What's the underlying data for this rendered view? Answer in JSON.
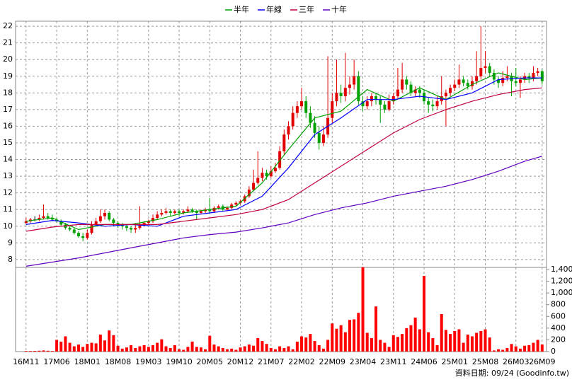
{
  "chart_data": {
    "type": "candlestick",
    "source": "資料日期: 09/24 (Goodinfo.tw)",
    "up_color": "#e00000",
    "down_color": "#00a000",
    "volume_color": "#ff0000",
    "grid": true,
    "categories": [
      "16M11",
      null,
      null,
      null,
      null,
      null,
      null,
      "17M06",
      null,
      null,
      null,
      null,
      null,
      null,
      "18M01",
      null,
      null,
      null,
      null,
      null,
      null,
      "18M08",
      null,
      null,
      null,
      null,
      null,
      null,
      "19M03",
      null,
      null,
      null,
      null,
      null,
      null,
      "19M10",
      null,
      null,
      null,
      null,
      null,
      null,
      "20M05",
      null,
      null,
      null,
      null,
      null,
      null,
      "20M12",
      null,
      null,
      null,
      null,
      null,
      null,
      "21M07",
      null,
      null,
      null,
      null,
      null,
      null,
      "22M02",
      null,
      null,
      null,
      null,
      null,
      null,
      "22M09",
      null,
      null,
      null,
      null,
      null,
      null,
      "23M04",
      null,
      null,
      null,
      null,
      null,
      null,
      "23M11",
      null,
      null,
      null,
      null,
      null,
      null,
      "24M06",
      null,
      null,
      null,
      null,
      null,
      null,
      "25M01",
      null,
      null,
      null,
      null,
      null,
      null,
      "25M08",
      null,
      null,
      null,
      null,
      null,
      null,
      "26M03",
      null,
      null,
      null,
      null,
      null,
      "26M09"
    ],
    "candles": [
      [
        10.2,
        10.5,
        10.1,
        10.3
      ],
      [
        10.3,
        10.5,
        10.2,
        10.4
      ],
      [
        10.4,
        10.6,
        10.3,
        10.4
      ],
      [
        10.4,
        10.7,
        10.3,
        10.5
      ],
      [
        10.5,
        11.3,
        10.4,
        10.6
      ],
      [
        10.6,
        10.8,
        10.4,
        10.5
      ],
      [
        10.5,
        10.7,
        10.3,
        10.4
      ],
      [
        10.4,
        10.5,
        10.2,
        10.3
      ],
      [
        10.3,
        10.4,
        10.0,
        10.1
      ],
      [
        10.1,
        10.2,
        9.8,
        9.9
      ],
      [
        9.9,
        10.0,
        9.7,
        9.8
      ],
      [
        9.8,
        9.9,
        9.5,
        9.6
      ],
      [
        9.6,
        9.7,
        9.3,
        9.4
      ],
      [
        9.4,
        9.6,
        9.1,
        9.3
      ],
      [
        9.3,
        9.8,
        9.2,
        9.6
      ],
      [
        9.6,
        10.3,
        9.5,
        10.1
      ],
      [
        10.1,
        10.5,
        10.0,
        10.3
      ],
      [
        10.3,
        11.0,
        10.2,
        10.6
      ],
      [
        10.6,
        11.0,
        10.4,
        10.8
      ],
      [
        10.8,
        10.9,
        10.3,
        10.4
      ],
      [
        10.4,
        10.5,
        10.0,
        10.2
      ],
      [
        10.2,
        10.3,
        9.9,
        10.1
      ],
      [
        10.1,
        10.2,
        9.8,
        10.0
      ],
      [
        10.0,
        10.1,
        9.7,
        9.9
      ],
      [
        9.9,
        10.0,
        9.6,
        9.8
      ],
      [
        9.8,
        10.2,
        9.6,
        9.9
      ],
      [
        9.9,
        11.2,
        9.8,
        10.1
      ],
      [
        10.1,
        10.3,
        10.0,
        10.2
      ],
      [
        10.2,
        10.4,
        10.1,
        10.3
      ],
      [
        10.3,
        10.7,
        10.2,
        10.5
      ],
      [
        10.5,
        10.9,
        10.4,
        10.7
      ],
      [
        10.7,
        11.0,
        10.6,
        10.8
      ],
      [
        10.8,
        11.1,
        10.7,
        10.9
      ],
      [
        10.9,
        11.0,
        10.6,
        10.8
      ],
      [
        10.8,
        11.0,
        10.7,
        10.9
      ],
      [
        10.9,
        11.0,
        10.6,
        10.8
      ],
      [
        10.8,
        11.0,
        10.7,
        10.9
      ],
      [
        10.9,
        11.2,
        10.8,
        11.0
      ],
      [
        11.0,
        11.1,
        10.8,
        10.9
      ],
      [
        10.9,
        11.0,
        10.4,
        10.8
      ],
      [
        10.8,
        11.0,
        10.7,
        10.9
      ],
      [
        10.9,
        11.1,
        10.8,
        11.0
      ],
      [
        11.0,
        11.7,
        10.8,
        10.9
      ],
      [
        10.9,
        11.2,
        10.8,
        11.1
      ],
      [
        11.1,
        11.3,
        11.0,
        11.2
      ],
      [
        11.2,
        11.3,
        10.9,
        11.0
      ],
      [
        11.0,
        11.2,
        10.9,
        11.1
      ],
      [
        11.1,
        11.4,
        11.0,
        11.3
      ],
      [
        11.3,
        11.5,
        11.2,
        11.4
      ],
      [
        11.4,
        11.6,
        11.3,
        11.5
      ],
      [
        11.5,
        11.9,
        11.4,
        11.8
      ],
      [
        11.8,
        12.4,
        11.7,
        12.2
      ],
      [
        12.2,
        13.4,
        12.1,
        12.6
      ],
      [
        12.6,
        14.5,
        12.5,
        12.9
      ],
      [
        12.9,
        13.5,
        12.7,
        13.2
      ],
      [
        13.2,
        13.4,
        12.8,
        13.0
      ],
      [
        13.0,
        13.6,
        12.9,
        13.3
      ],
      [
        13.3,
        13.8,
        13.2,
        13.5
      ],
      [
        13.5,
        14.8,
        13.4,
        14.5
      ],
      [
        14.5,
        15.8,
        14.3,
        15.5
      ],
      [
        15.5,
        16.3,
        15.2,
        16.0
      ],
      [
        16.0,
        17.2,
        15.8,
        16.8
      ],
      [
        16.8,
        17.5,
        16.5,
        17.2
      ],
      [
        17.2,
        18.3,
        17.0,
        17.5
      ],
      [
        17.5,
        17.8,
        16.5,
        16.8
      ],
      [
        16.8,
        17.2,
        15.9,
        16.2
      ],
      [
        16.2,
        16.6,
        15.3,
        15.6
      ],
      [
        15.6,
        16.0,
        14.6,
        15.0
      ],
      [
        15.0,
        16.0,
        14.8,
        15.5
      ],
      [
        15.5,
        20.2,
        15.3,
        16.5
      ],
      [
        16.5,
        18.0,
        16.2,
        17.5
      ],
      [
        17.5,
        20.0,
        17.2,
        18.0
      ],
      [
        18.0,
        18.5,
        17.4,
        17.8
      ],
      [
        17.8,
        20.4,
        17.5,
        18.3
      ],
      [
        18.3,
        19.0,
        17.9,
        18.5
      ],
      [
        18.5,
        20.0,
        18.2,
        19.0
      ],
      [
        19.0,
        19.3,
        17.3,
        17.5
      ],
      [
        17.5,
        17.8,
        16.9,
        17.2
      ],
      [
        17.2,
        17.8,
        17.0,
        17.5
      ],
      [
        17.5,
        18.0,
        17.2,
        17.8
      ],
      [
        17.8,
        18.0,
        17.3,
        17.6
      ],
      [
        17.6,
        17.8,
        16.2,
        17.3
      ],
      [
        17.3,
        17.5,
        16.8,
        17.0
      ],
      [
        17.0,
        17.9,
        16.9,
        17.5
      ],
      [
        17.5,
        18.0,
        17.3,
        17.8
      ],
      [
        17.8,
        19.5,
        17.6,
        18.2
      ],
      [
        18.2,
        19.8,
        18.0,
        18.8
      ],
      [
        18.8,
        19.0,
        18.2,
        18.5
      ],
      [
        18.5,
        18.7,
        17.8,
        18.0
      ],
      [
        18.0,
        18.4,
        17.8,
        18.2
      ],
      [
        18.2,
        18.4,
        17.7,
        18.0
      ],
      [
        18.0,
        18.2,
        17.3,
        17.5
      ],
      [
        17.5,
        17.7,
        16.8,
        17.3
      ],
      [
        17.3,
        17.6,
        16.9,
        17.2
      ],
      [
        17.2,
        17.8,
        17.0,
        17.5
      ],
      [
        17.5,
        19.0,
        17.3,
        17.8
      ],
      [
        17.8,
        18.2,
        16.0,
        18.0
      ],
      [
        18.0,
        18.5,
        17.8,
        18.3
      ],
      [
        18.3,
        18.8,
        18.1,
        18.5
      ],
      [
        18.5,
        19.7,
        18.3,
        18.8
      ],
      [
        18.8,
        19.0,
        18.4,
        18.6
      ],
      [
        18.6,
        18.8,
        18.2,
        18.4
      ],
      [
        18.4,
        19.0,
        18.2,
        18.7
      ],
      [
        18.7,
        20.5,
        18.5,
        19.0
      ],
      [
        19.0,
        22.0,
        18.8,
        19.5
      ],
      [
        19.5,
        20.5,
        19.2,
        19.6
      ],
      [
        19.6,
        19.8,
        19.0,
        19.2
      ],
      [
        19.2,
        19.4,
        18.5,
        18.8
      ],
      [
        18.8,
        19.0,
        18.3,
        18.6
      ],
      [
        18.6,
        19.3,
        18.4,
        18.9
      ],
      [
        18.9,
        19.6,
        18.7,
        19.0
      ],
      [
        19.0,
        19.2,
        17.8,
        18.7
      ],
      [
        18.7,
        19.5,
        18.4,
        18.6
      ],
      [
        18.6,
        19.0,
        17.7,
        18.8
      ],
      [
        18.8,
        19.2,
        18.6,
        19.0
      ],
      [
        19.0,
        19.2,
        18.6,
        18.9
      ],
      [
        18.9,
        19.6,
        18.7,
        19.2
      ],
      [
        19.2,
        19.5,
        19.0,
        19.3
      ],
      [
        19.3,
        19.4,
        18.5,
        18.7
      ]
    ],
    "volume": [
      10,
      10,
      12,
      15,
      20,
      15,
      10,
      200,
      170,
      260,
      150,
      90,
      120,
      80,
      130,
      150,
      140,
      290,
      190,
      360,
      280,
      100,
      50,
      70,
      110,
      60,
      90,
      110,
      80,
      110,
      150,
      210,
      90,
      60,
      110,
      40,
      30,
      80,
      170,
      80,
      70,
      40,
      270,
      120,
      90,
      60,
      40,
      50,
      30,
      70,
      90,
      120,
      100,
      230,
      180,
      130,
      60,
      40,
      90,
      60,
      90,
      40,
      170,
      260,
      240,
      300,
      180,
      110,
      50,
      200,
      480,
      390,
      450,
      330,
      540,
      550,
      660,
      1440,
      320,
      230,
      770,
      200,
      150,
      80,
      280,
      250,
      300,
      400,
      450,
      580,
      380,
      1290,
      330,
      230,
      110,
      640,
      370,
      300,
      350,
      380,
      150,
      290,
      260,
      320,
      350,
      380,
      240,
      20,
      40,
      30,
      60,
      130,
      90,
      50,
      100,
      110,
      150,
      200,
      120
    ],
    "series": [
      {
        "name": "半年",
        "color": "#00a000",
        "x": [
          0,
          6,
          12,
          18,
          24,
          30,
          36,
          42,
          48,
          54,
          60,
          66,
          72,
          78,
          84,
          90,
          96,
          102,
          108,
          114,
          118
        ],
        "values": [
          10.3,
          10.5,
          9.8,
          10.1,
          10.1,
          10.4,
          10.8,
          11.0,
          11.2,
          12.6,
          14.6,
          16.5,
          16.9,
          18.2,
          17.5,
          18.3,
          17.6,
          18.5,
          19.2,
          18.8,
          18.9
        ]
      },
      {
        "name": "年線",
        "color": "#0000ff",
        "x": [
          0,
          6,
          12,
          18,
          24,
          30,
          36,
          42,
          48,
          54,
          60,
          66,
          72,
          78,
          84,
          90,
          96,
          102,
          108,
          114,
          118
        ],
        "values": [
          10.1,
          10.35,
          10.2,
          10.0,
          10.1,
          10.0,
          10.6,
          10.8,
          11.0,
          11.8,
          13.5,
          15.5,
          16.5,
          17.6,
          17.6,
          17.8,
          17.6,
          18.0,
          18.8,
          18.9,
          18.9
        ]
      },
      {
        "name": "三年",
        "color": "#c00040",
        "x": [
          0,
          6,
          12,
          18,
          24,
          30,
          36,
          42,
          48,
          54,
          60,
          66,
          72,
          78,
          84,
          90,
          96,
          102,
          108,
          114,
          118
        ],
        "values": [
          9.7,
          9.95,
          10.1,
          10.1,
          10.1,
          10.1,
          10.3,
          10.5,
          10.7,
          11.0,
          11.6,
          12.6,
          13.6,
          14.6,
          15.6,
          16.4,
          17.0,
          17.5,
          17.9,
          18.2,
          18.3
        ]
      },
      {
        "name": "十年",
        "color": "#6000c0",
        "x": [
          0,
          6,
          12,
          18,
          24,
          30,
          36,
          42,
          48,
          54,
          60,
          66,
          72,
          78,
          84,
          90,
          96,
          102,
          108,
          114,
          118
        ],
        "values": [
          7.6,
          7.85,
          8.1,
          8.4,
          8.7,
          9.0,
          9.3,
          9.5,
          9.65,
          9.9,
          10.2,
          10.7,
          11.1,
          11.4,
          11.8,
          12.1,
          12.4,
          12.8,
          13.3,
          13.9,
          14.2
        ]
      }
    ],
    "xlim": [
      -2.4,
      119
    ],
    "ylim": [
      7.53,
      22.3
    ],
    "yticks": [
      8,
      9,
      10,
      11,
      12,
      13,
      14,
      15,
      16,
      17,
      18,
      19,
      20,
      21,
      22
    ],
    "y2lim": [
      0,
      1436
    ],
    "y2ticks": [
      0,
      200,
      400,
      600,
      800,
      {
        "value": 1000,
        "label": "1,000"
      },
      {
        "value": 1200,
        "label": "1,200"
      },
      {
        "value": 1400,
        "label": "1,400"
      }
    ]
  }
}
